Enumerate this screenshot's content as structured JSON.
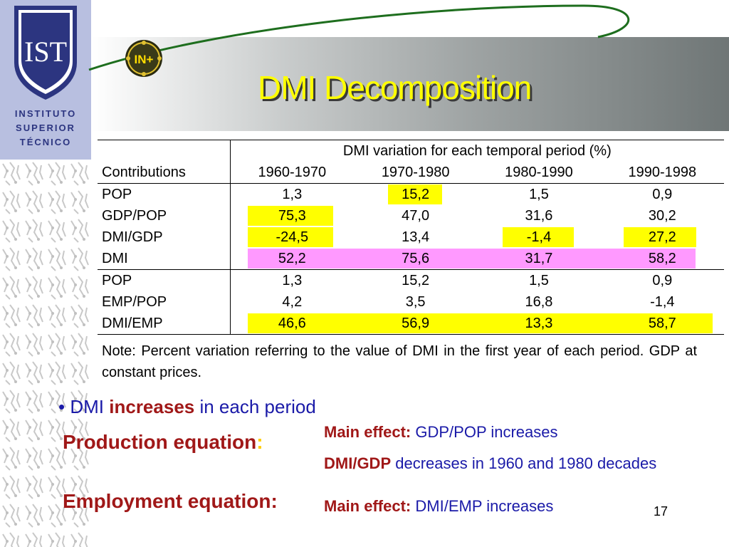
{
  "logo": {
    "letters": "IST",
    "line1": "INSTITUTO",
    "line2": "SUPERIOR",
    "line3": "TÉCNICO"
  },
  "badge": {
    "text": "IN+"
  },
  "title": "DMI Decomposition",
  "table": {
    "group_header": "DMI variation for each temporal period (%)",
    "row_label_header": "Contributions",
    "periods": [
      "1960-1970",
      "1970-1980",
      "1980-1990",
      "1990-1998"
    ],
    "rows": [
      {
        "label": "POP",
        "values": [
          "1,3",
          "15,2",
          "1,5",
          "0,9"
        ]
      },
      {
        "label": "GDP/POP",
        "values": [
          "75,3",
          "47,0",
          "31,6",
          "30,2"
        ]
      },
      {
        "label": "DMI/GDP",
        "values": [
          "-24,5",
          "13,4",
          "-1,4",
          "27,2"
        ]
      },
      {
        "label": "DMI",
        "values": [
          "52,2",
          "75,6",
          "31,7",
          "58,2"
        ]
      },
      {
        "label": "POP",
        "values": [
          "1,3",
          "15,2",
          "1,5",
          "0,9"
        ]
      },
      {
        "label": "EMP/POP",
        "values": [
          "4,2",
          "3,5",
          "16,8",
          "-1,4"
        ]
      },
      {
        "label": "DMI/EMP",
        "values": [
          "46,6",
          "56,9",
          "13,3",
          "58,7"
        ]
      }
    ],
    "highlight_yellow": "#ffff00",
    "highlight_pink": "#ff99ff"
  },
  "note": "Note: Percent variation referring to the value of DMI in the first year of each period. GDP at constant prices.",
  "bullet": {
    "marker": "•",
    "pre": "DMI",
    "strong": "increases",
    "post": "in each period"
  },
  "production": {
    "label": "Production equation",
    "colon": ":"
  },
  "employment": {
    "label": "Employment equation:"
  },
  "effects": {
    "e1_strong": "Main effect:",
    "e1_text": "GDP/POP increases",
    "e2_strong": "DMI/GDP",
    "e2_text": "decreases in 1960 and 1980 decades",
    "e3_strong": "Main effect:",
    "e3_text": "DMI/EMP increases"
  },
  "page_number": "17"
}
